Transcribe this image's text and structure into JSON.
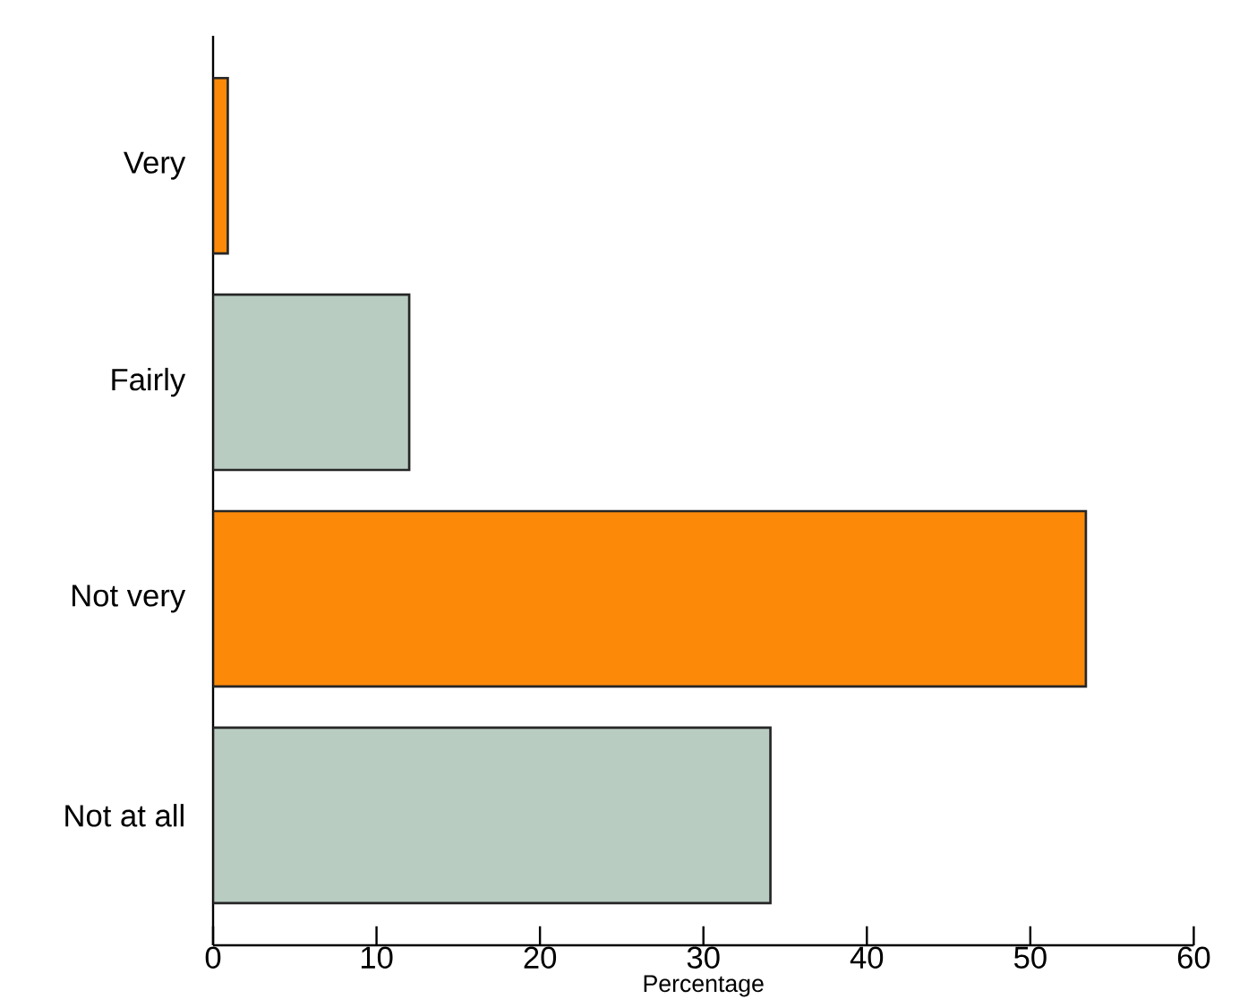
{
  "chart_data": {
    "type": "bar",
    "orientation": "horizontal",
    "xlabel": "Percentage",
    "categories": [
      "Very",
      "Fairly",
      "Not very",
      "Not at all"
    ],
    "values": [
      0.9,
      12,
      53.4,
      34.1
    ],
    "colors": [
      "#fc8a08",
      "#b9ccc2",
      "#fc8a08",
      "#b9ccc2"
    ],
    "xlim": [
      0,
      60
    ],
    "xticks": [
      0,
      10,
      20,
      30,
      40,
      50,
      60
    ]
  }
}
